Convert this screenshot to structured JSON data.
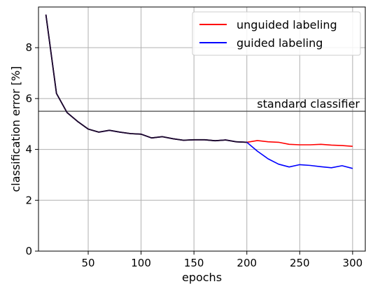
{
  "chart_data": {
    "type": "line",
    "title": "",
    "xlabel": "epochs",
    "ylabel": "classification error [%]",
    "xlim": [
      3,
      312
    ],
    "ylim": [
      0,
      9.6
    ],
    "xticks": [
      50,
      100,
      150,
      200,
      250,
      300
    ],
    "yticks": [
      0,
      2,
      4,
      6,
      8
    ],
    "grid": true,
    "legend_position": "top-right",
    "reference_line": {
      "label": "standard classifier",
      "y": 5.5,
      "color": "#555555"
    },
    "series": [
      {
        "name": "unguided labeling",
        "color": "#ff0000",
        "x": [
          10,
          20,
          30,
          40,
          50,
          60,
          70,
          80,
          90,
          100,
          110,
          120,
          130,
          140,
          150,
          160,
          170,
          180,
          190,
          200,
          210,
          220,
          230,
          240,
          250,
          260,
          270,
          280,
          290,
          300
        ],
        "y": [
          9.3,
          6.2,
          5.45,
          5.1,
          4.8,
          4.68,
          4.75,
          4.68,
          4.62,
          4.6,
          4.45,
          4.5,
          4.42,
          4.36,
          4.38,
          4.38,
          4.34,
          4.37,
          4.3,
          4.28,
          4.35,
          4.3,
          4.28,
          4.2,
          4.18,
          4.18,
          4.2,
          4.17,
          4.15,
          4.12
        ]
      },
      {
        "name": "guided labeling",
        "color": "#0000ff",
        "x": [
          10,
          20,
          30,
          40,
          50,
          60,
          70,
          80,
          90,
          100,
          110,
          120,
          130,
          140,
          150,
          160,
          170,
          180,
          190,
          200,
          210,
          220,
          230,
          240,
          250,
          260,
          270,
          280,
          290,
          300
        ],
        "y": [
          9.3,
          6.2,
          5.45,
          5.1,
          4.8,
          4.68,
          4.75,
          4.68,
          4.62,
          4.6,
          4.45,
          4.5,
          4.42,
          4.36,
          4.38,
          4.38,
          4.34,
          4.37,
          4.3,
          4.28,
          3.93,
          3.63,
          3.42,
          3.31,
          3.4,
          3.37,
          3.32,
          3.28,
          3.36,
          3.25
        ]
      }
    ]
  }
}
